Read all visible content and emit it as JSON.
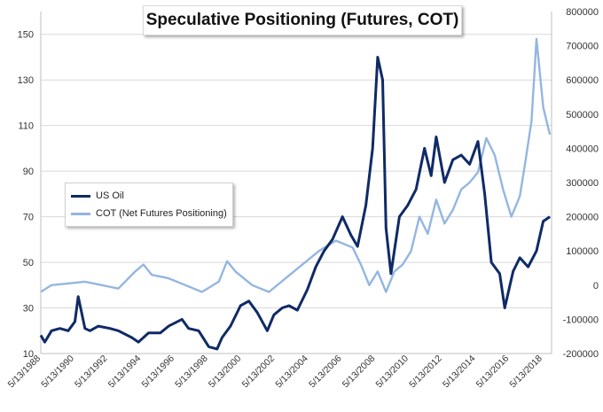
{
  "title": "Speculative Positioning (Futures, COT)",
  "chart_data": {
    "type": "line",
    "x_tick_labels": [
      "5/13/1988",
      "5/13/1990",
      "5/13/1992",
      "5/13/1994",
      "5/13/1996",
      "5/13/1998",
      "5/13/2000",
      "5/13/2002",
      "5/13/2004",
      "5/13/2006",
      "5/13/2008",
      "5/13/2010",
      "5/13/2012",
      "5/13/2014",
      "5/13/2016",
      "5/13/2018"
    ],
    "x_range": [
      1988.36,
      2018.9
    ],
    "left_axis": {
      "ticks": [
        10,
        30,
        50,
        70,
        90,
        110,
        130,
        150
      ],
      "ylim": [
        10,
        160
      ]
    },
    "right_axis": {
      "ticks": [
        -200000,
        -100000,
        0,
        100000,
        200000,
        300000,
        400000,
        500000,
        600000,
        700000,
        800000
      ],
      "ylim": [
        -200000,
        800000
      ]
    },
    "grid": true,
    "legend_position": "left-middle",
    "series": [
      {
        "name": "US Oil",
        "axis": "left",
        "color": "#0f2a66",
        "x": [
          1988.0,
          1988.6,
          1989.0,
          1989.5,
          1990.0,
          1990.4,
          1990.6,
          1990.8,
          1991.0,
          1991.3,
          1991.8,
          1992.5,
          1993.0,
          1993.8,
          1994.2,
          1994.8,
          1995.5,
          1996.0,
          1996.8,
          1997.2,
          1997.8,
          1998.4,
          1998.9,
          1999.2,
          1999.7,
          2000.3,
          2000.8,
          2001.3,
          2001.9,
          2002.3,
          2002.8,
          2003.2,
          2003.7,
          2004.3,
          2004.8,
          2005.3,
          2005.8,
          2006.4,
          2006.9,
          2007.3,
          2007.8,
          2008.2,
          2008.5,
          2008.8,
          2009.0,
          2009.3,
          2009.8,
          2010.3,
          2010.8,
          2011.3,
          2011.7,
          2012.0,
          2012.5,
          2013.0,
          2013.5,
          2014.0,
          2014.5,
          2014.9,
          2015.3,
          2015.8,
          2016.1,
          2016.6,
          2017.0,
          2017.5,
          2018.0,
          2018.4,
          2018.8
        ],
        "values": [
          18,
          15,
          20,
          21,
          20,
          24,
          35,
          28,
          21,
          20,
          22,
          21,
          20,
          17,
          15,
          19,
          19,
          22,
          25,
          21,
          20,
          13,
          12,
          17,
          22,
          31,
          33,
          28,
          20,
          27,
          30,
          31,
          29,
          38,
          48,
          55,
          60,
          70,
          62,
          57,
          75,
          100,
          140,
          130,
          65,
          45,
          70,
          75,
          82,
          100,
          88,
          105,
          85,
          95,
          97,
          93,
          103,
          80,
          50,
          45,
          30,
          46,
          52,
          48,
          55,
          68,
          70
        ]
      },
      {
        "name": "COT (Net Futures Positioning)",
        "axis": "right",
        "color": "#94b6e0",
        "x": [
          1988.0,
          1989.0,
          1990.0,
          1991.0,
          1992.0,
          1993.0,
          1994.0,
          1994.5,
          1995.0,
          1996.0,
          1997.0,
          1998.0,
          1999.0,
          1999.5,
          2000.0,
          2001.0,
          2002.0,
          2003.0,
          2004.0,
          2005.0,
          2006.0,
          2007.0,
          2007.5,
          2008.0,
          2008.5,
          2009.0,
          2009.5,
          2010.0,
          2010.5,
          2011.0,
          2011.5,
          2012.0,
          2012.5,
          2013.0,
          2013.5,
          2014.0,
          2014.5,
          2015.0,
          2015.5,
          2016.0,
          2016.5,
          2017.0,
          2017.3,
          2017.7,
          2018.0,
          2018.4,
          2018.8
        ],
        "values": [
          -20000,
          0,
          5000,
          10000,
          0,
          -10000,
          40000,
          60000,
          30000,
          20000,
          0,
          -20000,
          10000,
          70000,
          40000,
          0,
          -20000,
          20000,
          60000,
          100000,
          130000,
          110000,
          60000,
          0,
          40000,
          -20000,
          40000,
          60000,
          100000,
          200000,
          150000,
          250000,
          180000,
          220000,
          280000,
          300000,
          330000,
          430000,
          380000,
          280000,
          200000,
          260000,
          350000,
          480000,
          720000,
          520000,
          440000
        ]
      }
    ]
  }
}
